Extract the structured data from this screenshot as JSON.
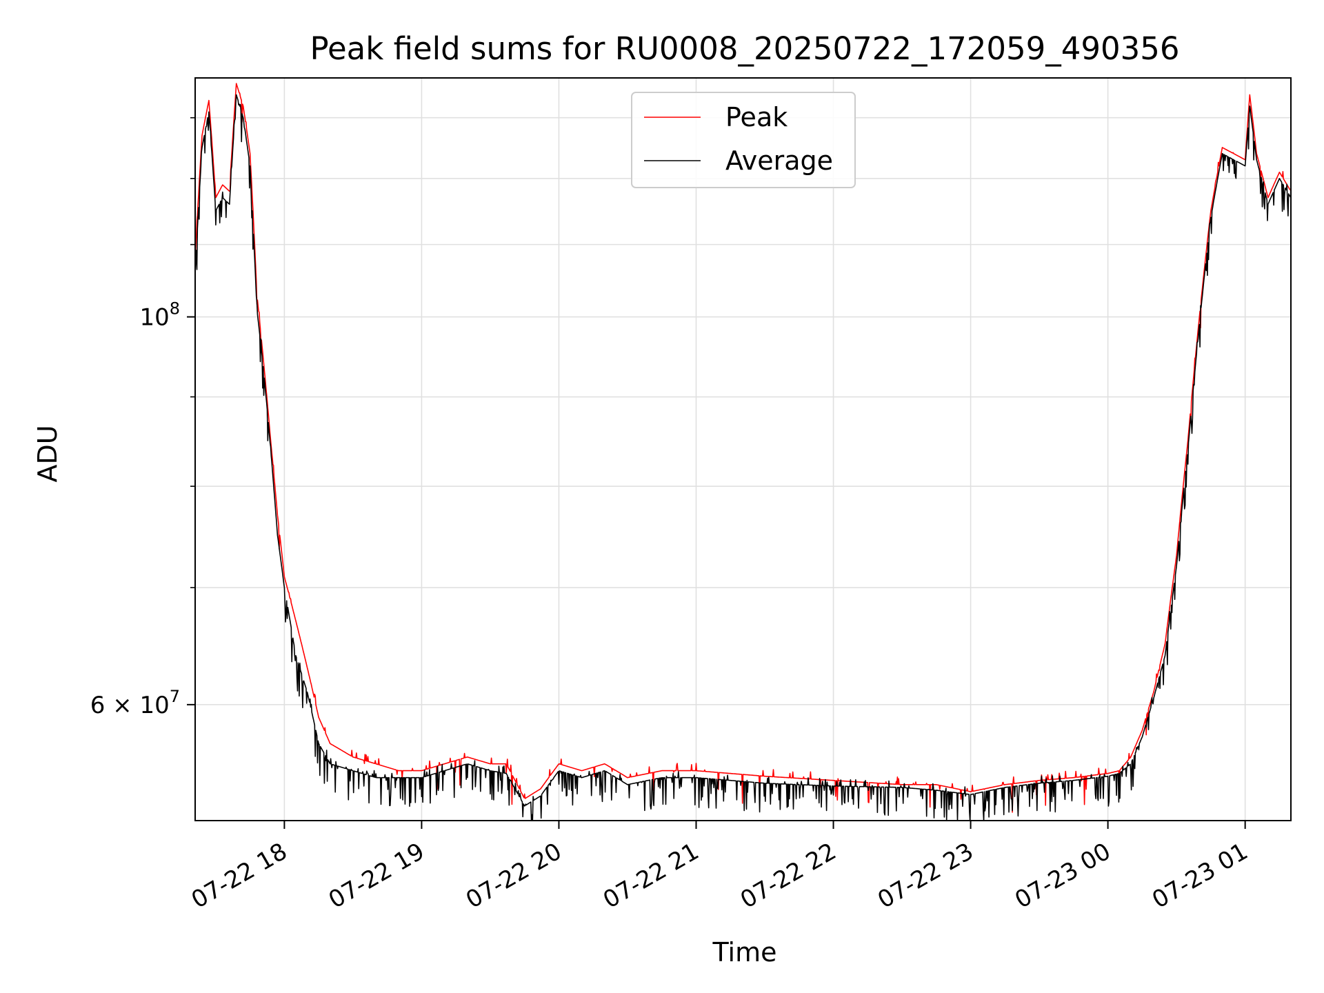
{
  "chart_data": {
    "type": "line",
    "title": "Peak field sums for RU0008_20250722_172059_490356",
    "xlabel": "Time",
    "ylabel": "ADU",
    "yscale": "log",
    "xlim": [
      "2025-07-22 17:21",
      "2025-07-23 01:20"
    ],
    "ylim": [
      51500000,
      137000000
    ],
    "grid": true,
    "legend_position": "top-center",
    "x_ticks": [
      "07-22 18",
      "07-22 19",
      "07-22 20",
      "07-22 21",
      "07-22 22",
      "07-22 23",
      "07-23 00",
      "07-23 01"
    ],
    "y_ticks": [
      {
        "value": 60000000,
        "base": "6 × 10",
        "exp": "7"
      },
      {
        "value": 100000000,
        "base": "10",
        "exp": "8"
      }
    ],
    "x": [
      "2025-07-22 17:21",
      "2025-07-22 17:24",
      "2025-07-22 17:27",
      "2025-07-22 17:30",
      "2025-07-22 17:33",
      "2025-07-22 17:36",
      "2025-07-22 17:39",
      "2025-07-22 17:42",
      "2025-07-22 17:45",
      "2025-07-22 17:48",
      "2025-07-22 17:51",
      "2025-07-22 17:54",
      "2025-07-22 17:57",
      "2025-07-22 18:00",
      "2025-07-22 18:05",
      "2025-07-22 18:10",
      "2025-07-22 18:15",
      "2025-07-22 18:20",
      "2025-07-22 18:30",
      "2025-07-22 18:40",
      "2025-07-22 18:50",
      "2025-07-22 19:00",
      "2025-07-22 19:10",
      "2025-07-22 19:20",
      "2025-07-22 19:30",
      "2025-07-22 19:37",
      "2025-07-22 19:45",
      "2025-07-22 19:52",
      "2025-07-22 20:00",
      "2025-07-22 20:10",
      "2025-07-22 20:20",
      "2025-07-22 20:30",
      "2025-07-22 20:45",
      "2025-07-22 21:00",
      "2025-07-22 21:15",
      "2025-07-22 21:30",
      "2025-07-22 22:00",
      "2025-07-22 22:30",
      "2025-07-22 22:45",
      "2025-07-22 23:00",
      "2025-07-22 23:15",
      "2025-07-22 23:30",
      "2025-07-22 23:45",
      "2025-07-23 00:00",
      "2025-07-23 00:05",
      "2025-07-23 00:10",
      "2025-07-23 00:15",
      "2025-07-23 00:20",
      "2025-07-23 00:25",
      "2025-07-23 00:30",
      "2025-07-23 00:35",
      "2025-07-23 00:40",
      "2025-07-23 00:45",
      "2025-07-23 00:50",
      "2025-07-23 00:55",
      "2025-07-23 01:00",
      "2025-07-23 01:02",
      "2025-07-23 01:05",
      "2025-07-23 01:10",
      "2025-07-23 01:15",
      "2025-07-23 01:20"
    ],
    "series": [
      {
        "name": "Peak",
        "color": "#ff0000",
        "values": [
          108,
          127,
          133,
          117,
          119,
          118,
          136,
          132,
          124,
          103,
          94,
          85,
          77,
          71,
          67,
          63,
          59,
          57,
          56,
          55.5,
          55,
          55,
          55.5,
          56,
          55.5,
          55.5,
          53,
          53.7,
          55.5,
          55,
          55.5,
          54.5,
          55,
          55,
          54.8,
          54.6,
          54.3,
          54,
          54,
          53.5,
          54,
          54.3,
          54.5,
          54.8,
          55,
          56,
          58,
          61,
          65,
          73,
          85,
          100,
          115,
          125,
          124,
          123,
          134,
          124,
          117,
          121,
          118
        ]
      },
      {
        "name": "Average",
        "color": "#000000",
        "values": [
          106,
          125,
          131,
          115,
          117,
          116,
          134,
          130,
          122,
          101,
          93,
          84,
          75,
          70,
          64,
          61,
          57,
          55.5,
          55,
          54.5,
          54.5,
          54.5,
          55,
          55.5,
          55,
          54.8,
          52.5,
          53.2,
          55,
          54.5,
          55,
          54,
          54.5,
          54.5,
          54.3,
          54.1,
          53.9,
          53.8,
          53.6,
          53.3,
          53.8,
          54.1,
          54.3,
          54.6,
          54.8,
          55.5,
          57.5,
          60.5,
          64,
          72,
          84,
          99,
          114,
          124,
          123,
          122,
          132,
          123,
          116,
          120,
          117
        ]
      }
    ]
  }
}
